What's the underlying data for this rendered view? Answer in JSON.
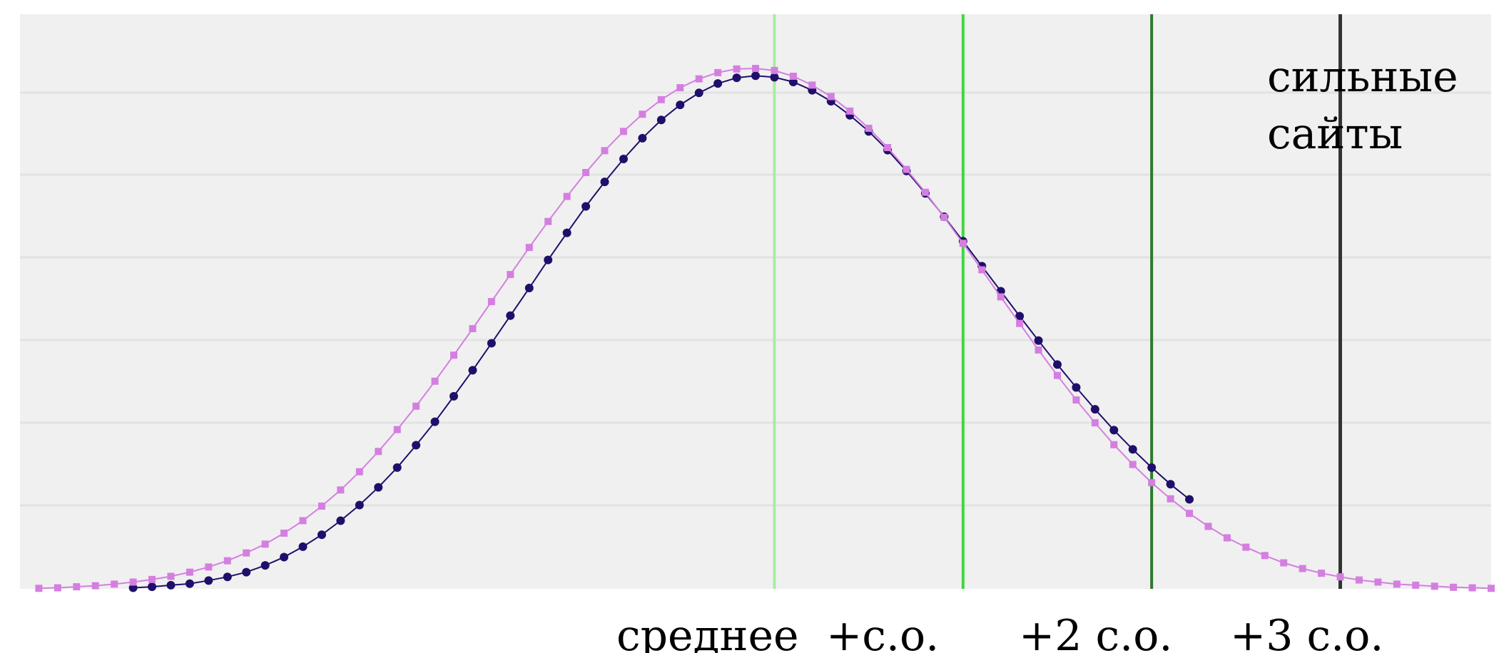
{
  "chart_data": {
    "type": "line",
    "x_range": [
      -4,
      3.8
    ],
    "y_range": [
      0,
      1
    ],
    "grid": "horizontal",
    "series": [
      {
        "color": "#1f0f6b",
        "marker": "circle",
        "x": [
          -3.4,
          -3.3,
          -3.2,
          -3.1,
          -3.0,
          -2.9,
          -2.8,
          -2.7,
          -2.6,
          -2.5,
          -2.4,
          -2.3,
          -2.2,
          -2.1,
          -2.0,
          -1.9,
          -1.8,
          -1.7,
          -1.6,
          -1.5,
          -1.4,
          -1.3,
          -1.2,
          -1.1,
          -1.0,
          -0.9,
          -0.8,
          -0.7,
          -0.6,
          -0.5,
          -0.4,
          -0.3,
          -0.2,
          -0.1,
          0.0,
          0.1,
          0.2,
          0.3,
          0.4,
          0.5,
          0.6,
          0.7,
          0.8,
          0.9,
          1.0,
          1.1,
          1.2,
          1.3,
          1.4,
          1.5,
          1.6,
          1.7,
          1.8,
          1.9,
          2.0,
          2.1,
          2.2
        ],
        "y": [
          0.002,
          0.004,
          0.007,
          0.01,
          0.016,
          0.023,
          0.032,
          0.045,
          0.061,
          0.081,
          0.104,
          0.131,
          0.161,
          0.195,
          0.233,
          0.276,
          0.321,
          0.37,
          0.42,
          0.472,
          0.525,
          0.578,
          0.632,
          0.684,
          0.735,
          0.782,
          0.826,
          0.866,
          0.901,
          0.93,
          0.953,
          0.971,
          0.982,
          0.986,
          0.983,
          0.974,
          0.958,
          0.937,
          0.91,
          0.879,
          0.843,
          0.803,
          0.76,
          0.715,
          0.668,
          0.62,
          0.572,
          0.524,
          0.477,
          0.431,
          0.387,
          0.345,
          0.305,
          0.268,
          0.233,
          0.201,
          0.172
        ]
      },
      {
        "color": "#d47fe0",
        "marker": "square",
        "x": [
          -3.9,
          -3.8,
          -3.7,
          -3.6,
          -3.5,
          -3.4,
          -3.3,
          -3.2,
          -3.1,
          -3.0,
          -2.9,
          -2.8,
          -2.7,
          -2.6,
          -2.5,
          -2.4,
          -2.3,
          -2.2,
          -2.1,
          -2.0,
          -1.9,
          -1.8,
          -1.7,
          -1.6,
          -1.5,
          -1.4,
          -1.3,
          -1.2,
          -1.1,
          -1.0,
          -0.9,
          -0.8,
          -0.7,
          -0.6,
          -0.5,
          -0.4,
          -0.3,
          -0.2,
          -0.1,
          0.0,
          0.1,
          0.2,
          0.3,
          0.4,
          0.5,
          0.6,
          0.7,
          0.8,
          0.9,
          1.0,
          1.1,
          1.2,
          1.3,
          1.4,
          1.5,
          1.6,
          1.7,
          1.8,
          1.9,
          2.0,
          2.1,
          2.2,
          2.3,
          2.4,
          2.5,
          2.6,
          2.7,
          2.8,
          2.9,
          3.0,
          3.1,
          3.2,
          3.3,
          3.4,
          3.5,
          3.6,
          3.7,
          3.8
        ],
        "y": [
          0.001,
          0.002,
          0.004,
          0.006,
          0.009,
          0.013,
          0.018,
          0.024,
          0.032,
          0.042,
          0.054,
          0.069,
          0.086,
          0.107,
          0.131,
          0.159,
          0.19,
          0.225,
          0.264,
          0.306,
          0.351,
          0.399,
          0.449,
          0.5,
          0.552,
          0.604,
          0.656,
          0.706,
          0.754,
          0.8,
          0.842,
          0.879,
          0.912,
          0.94,
          0.963,
          0.98,
          0.992,
          0.999,
          1.0,
          0.996,
          0.985,
          0.968,
          0.946,
          0.918,
          0.885,
          0.848,
          0.806,
          0.762,
          0.714,
          0.664,
          0.613,
          0.561,
          0.51,
          0.459,
          0.41,
          0.363,
          0.319,
          0.277,
          0.239,
          0.204,
          0.173,
          0.145,
          0.12,
          0.098,
          0.08,
          0.064,
          0.05,
          0.039,
          0.03,
          0.023,
          0.017,
          0.013,
          0.009,
          0.007,
          0.005,
          0.003,
          0.002,
          0.001
        ]
      }
    ],
    "reference_lines": [
      {
        "x": 0.0,
        "color": "#a6eea0",
        "label": "среднее"
      },
      {
        "x": 1.0,
        "color": "#3cd83c",
        "label": "+с.о."
      },
      {
        "x": 2.0,
        "color": "#2a7a2a",
        "label": "+2 с.о."
      },
      {
        "x": 3.0,
        "color": "#333333",
        "label": "+3 с.о."
      }
    ],
    "annotation": [
      "сильные",
      "сайты"
    ]
  }
}
